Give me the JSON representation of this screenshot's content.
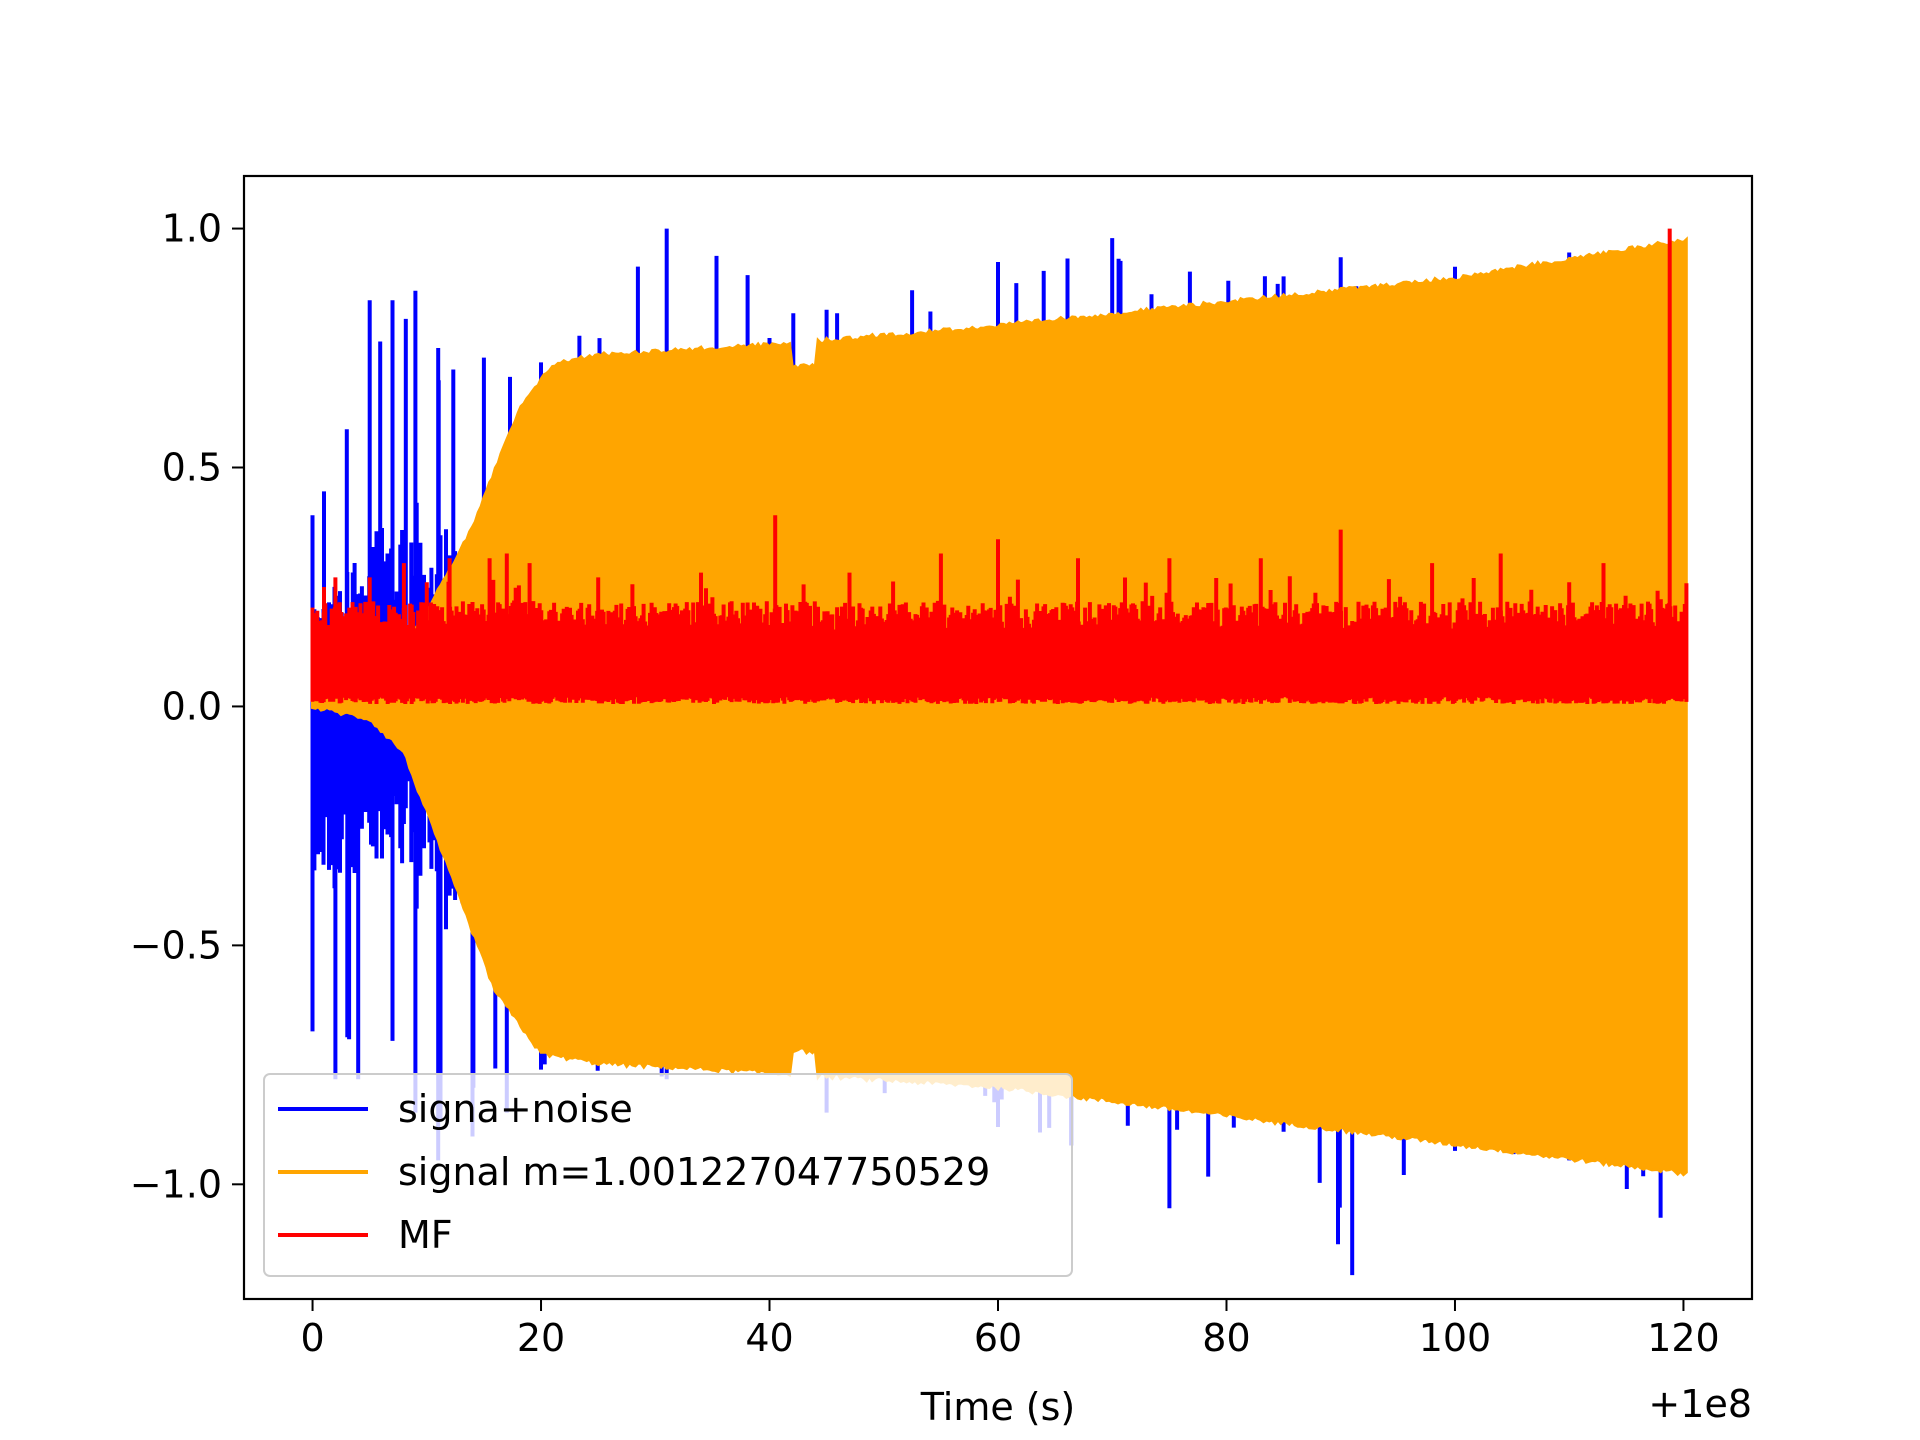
{
  "chart_data": {
    "type": "line",
    "xlabel": "Time (s)",
    "x_offset_label": "+1e8",
    "xlim": [
      -6,
      126
    ],
    "ylim": [
      -1.24,
      1.11
    ],
    "x_ticks": [
      0,
      20,
      40,
      60,
      80,
      100,
      120
    ],
    "x_tick_labels": [
      "0",
      "20",
      "40",
      "60",
      "80",
      "100",
      "120"
    ],
    "y_ticks": [
      1.0,
      0.5,
      0.0,
      -0.5,
      -1.0
    ],
    "y_tick_labels": [
      "1.0",
      "0.5",
      "0.0",
      "−0.5",
      "−1.0"
    ],
    "grid": false,
    "legend_position": "lower-left",
    "colors": {
      "noise": "#0000ff",
      "signal": "#ffa500",
      "mf": "#ff0000"
    },
    "series": [
      {
        "name": "signa+noise",
        "color": "#0000ff",
        "envelope_upper": {
          "x": [
            0,
            1,
            3,
            5,
            7,
            9,
            11,
            15,
            20,
            31,
            45,
            60,
            70,
            85,
            90,
            100,
            110,
            119.5
          ],
          "y": [
            0.4,
            0.45,
            0.58,
            0.85,
            0.85,
            0.87,
            0.75,
            0.73,
            0.72,
            1.0,
            0.83,
            0.93,
            0.98,
            0.9,
            0.94,
            0.92,
            0.95,
            0.97
          ]
        },
        "envelope_lower": {
          "x": [
            0,
            2,
            4,
            7,
            9,
            11,
            14,
            17,
            20,
            31,
            45,
            60,
            75,
            85,
            91,
            100,
            110,
            118
          ],
          "y": [
            -0.68,
            -0.78,
            -0.78,
            -0.7,
            -0.85,
            -0.95,
            -0.9,
            -0.85,
            -0.76,
            -0.78,
            -0.85,
            -0.88,
            -1.05,
            -0.89,
            -1.19,
            -0.93,
            -0.95,
            -1.07
          ]
        }
      },
      {
        "name": "signal m=1.001227047750529",
        "color": "#ffa500",
        "envelope_upper": {
          "x": [
            0,
            5,
            10,
            14,
            18,
            21,
            25,
            40,
            60,
            80,
            100,
            120
          ],
          "y": [
            0.03,
            0.06,
            0.2,
            0.38,
            0.62,
            0.72,
            0.74,
            0.76,
            0.8,
            0.85,
            0.9,
            0.98
          ]
        },
        "envelope_lower": {
          "x": [
            0,
            5,
            8,
            12,
            16,
            20,
            25,
            40,
            60,
            80,
            100,
            120
          ],
          "y": [
            -0.005,
            -0.03,
            -0.1,
            -0.35,
            -0.6,
            -0.73,
            -0.75,
            -0.77,
            -0.8,
            -0.86,
            -0.92,
            -0.98
          ]
        }
      },
      {
        "name": "MF",
        "color": "#ff0000",
        "baseline_low": 0.02,
        "baseline_high": 0.16,
        "spikes": {
          "x": [
            1,
            2,
            5,
            8,
            10,
            12,
            15.5,
            17,
            19,
            25,
            34,
            40.5,
            47,
            55,
            60,
            67,
            75,
            83,
            90,
            98,
            104,
            110,
            113,
            118.8
          ],
          "y": [
            0.25,
            0.27,
            0.27,
            0.3,
            0.26,
            0.31,
            0.31,
            0.32,
            0.3,
            0.27,
            0.28,
            0.4,
            0.28,
            0.32,
            0.35,
            0.31,
            0.31,
            0.31,
            0.37,
            0.3,
            0.32,
            0.26,
            0.3,
            1.0
          ]
        }
      }
    ]
  }
}
